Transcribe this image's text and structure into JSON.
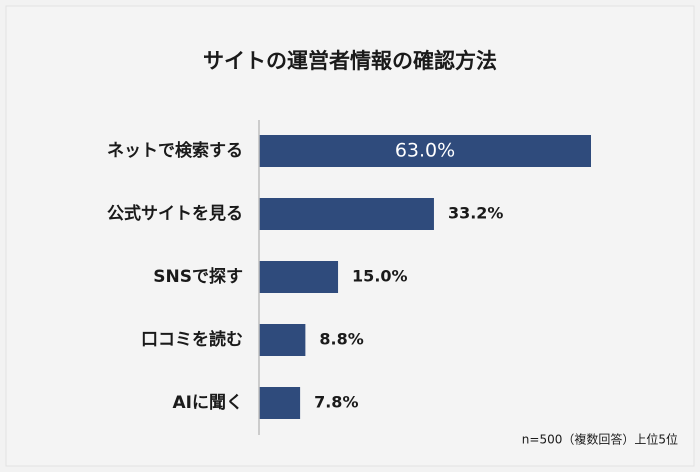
{
  "chart_data": {
    "type": "hbar",
    "title": "サイトの運営者情報の確認方法",
    "note": "n=500（複数回答）上位5位",
    "categories": [
      "ネットで検索する",
      "公式サイトを見る",
      "SNSで探す",
      "口コミを読む",
      "AIに聞く"
    ],
    "values": [
      63.0,
      33.2,
      15.0,
      8.8,
      7.8
    ],
    "value_labels": [
      "63.0%",
      "33.2%",
      "15.0%",
      "8.8%",
      "7.8%"
    ],
    "color": "#2f4b7c"
  }
}
